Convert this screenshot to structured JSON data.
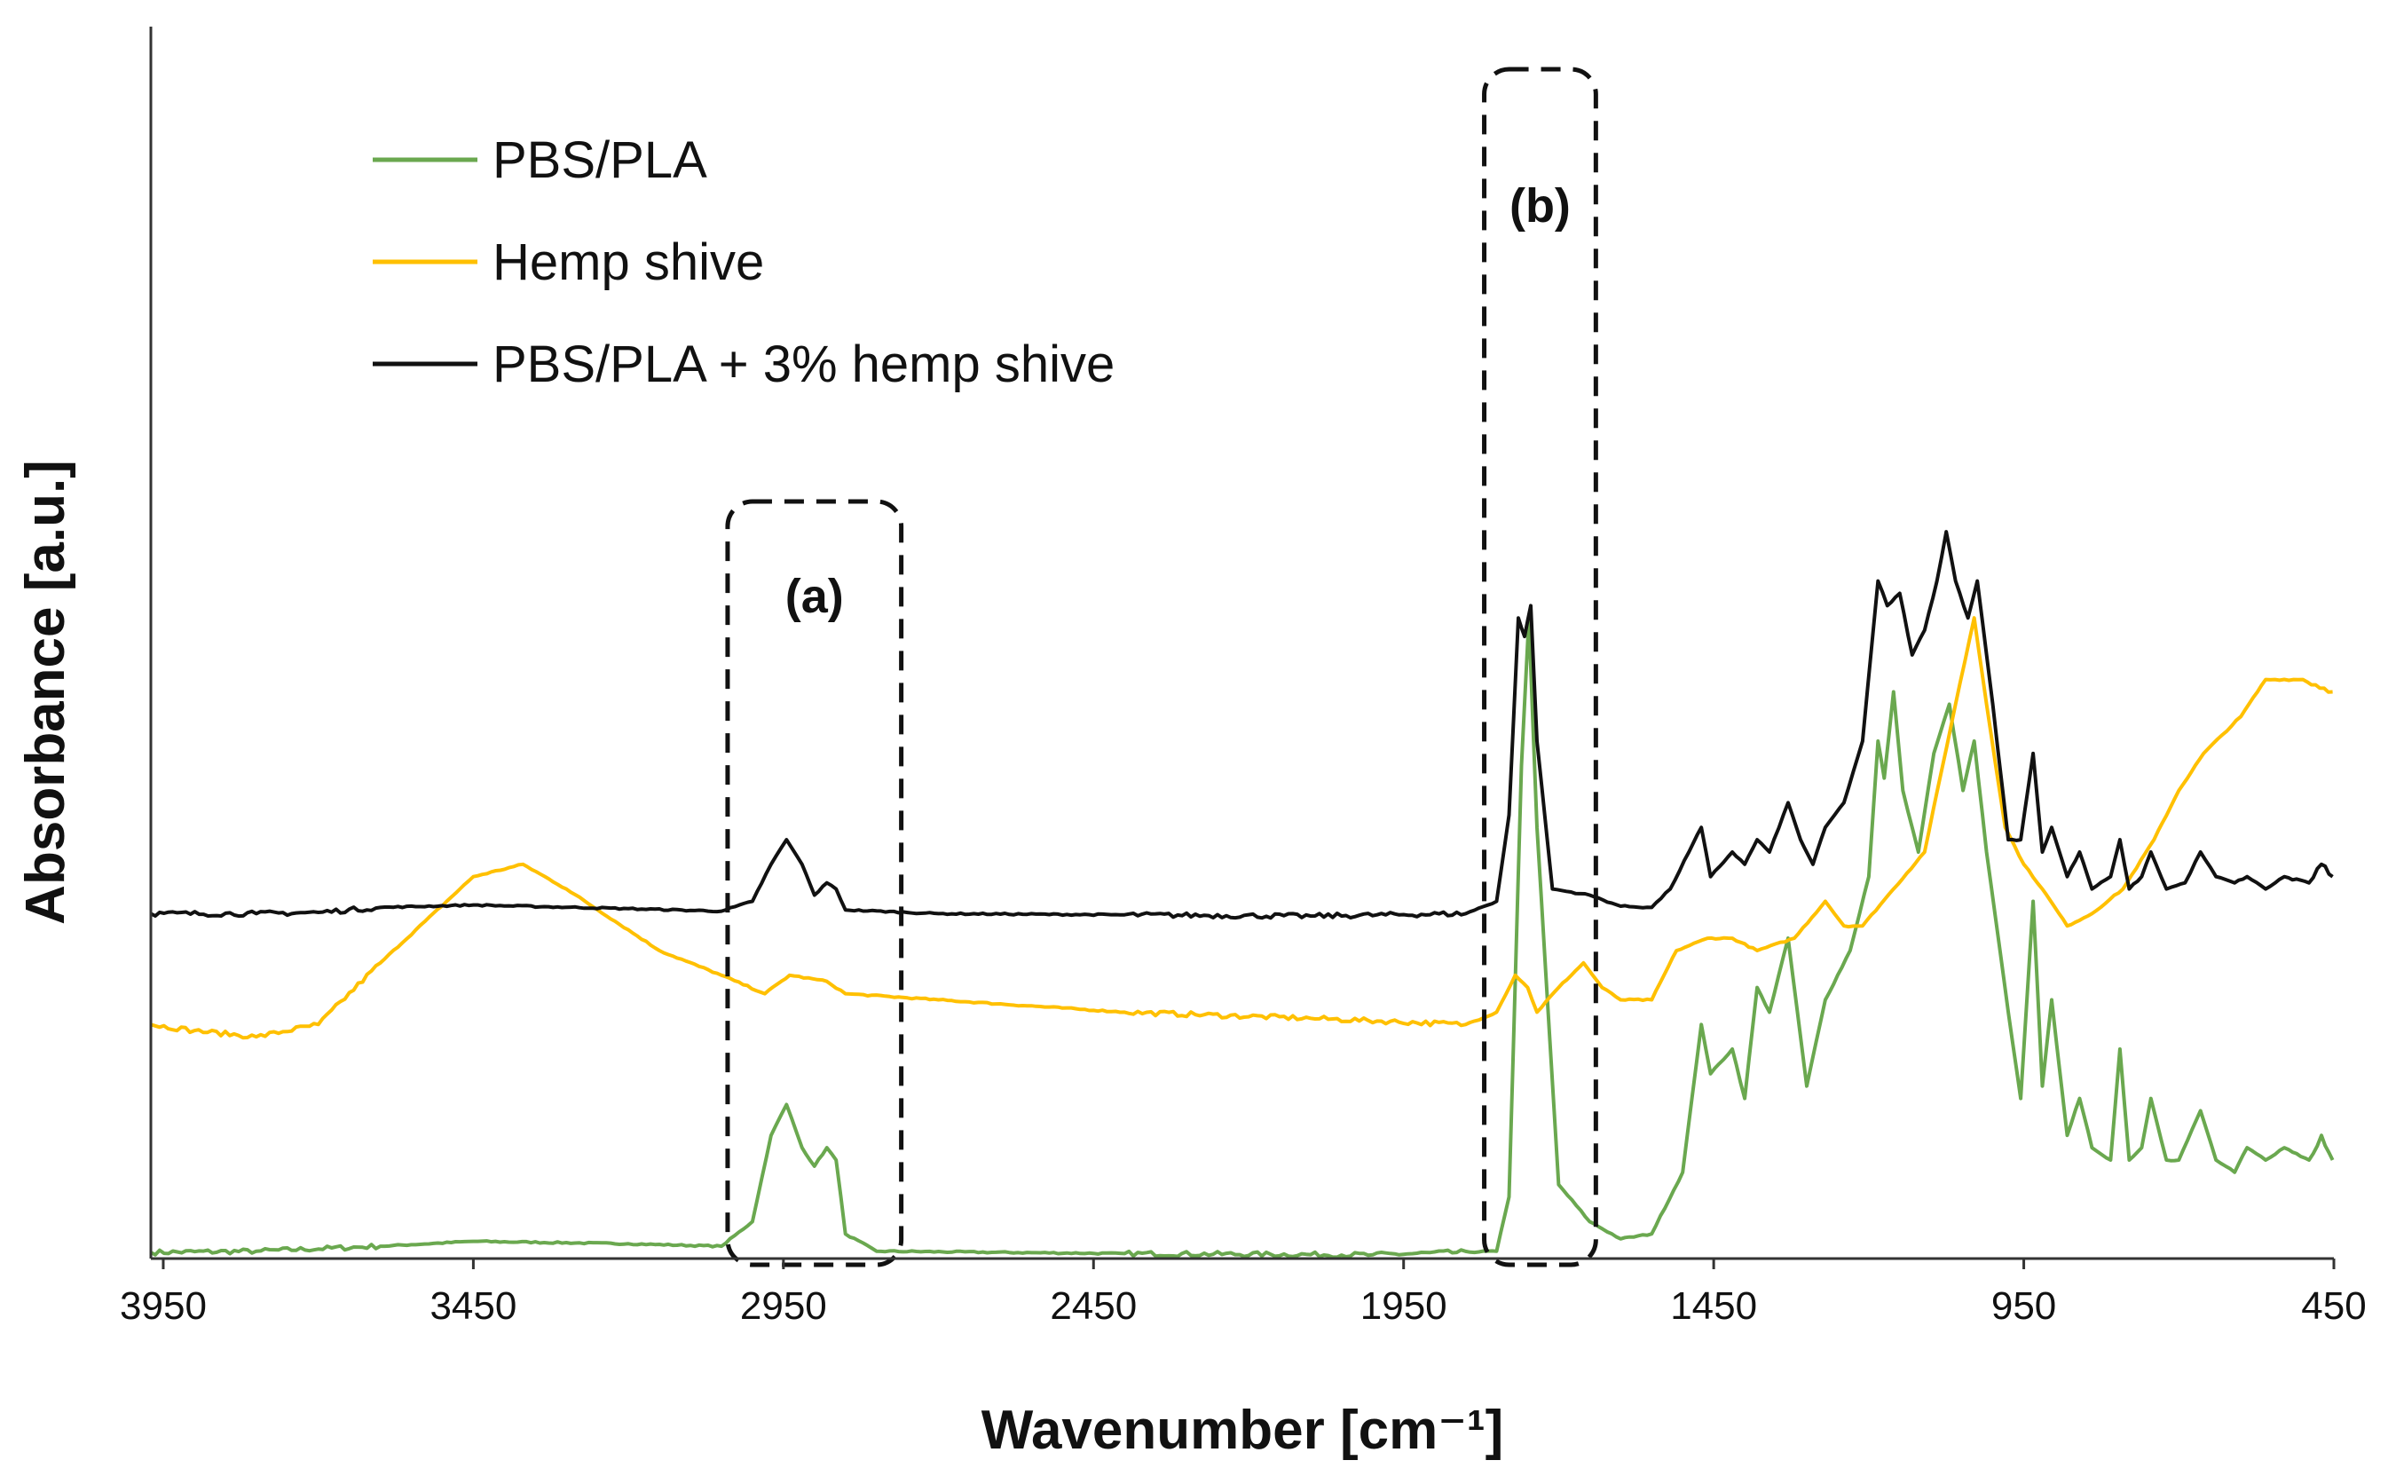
{
  "chart_data": {
    "type": "line",
    "title": "",
    "xlabel": "Wavenumber [cm⁻¹]",
    "ylabel": "Absorbance [a.u.]",
    "xlim": [
      3970,
      450
    ],
    "ylim": [
      0,
      1
    ],
    "x_reversed": true,
    "x_ticks": [
      "3950",
      "3450",
      "2950",
      "2450",
      "1950",
      "1450",
      "950",
      "450"
    ],
    "x_tick_values": [
      3950,
      3450,
      2950,
      2450,
      1950,
      1450,
      950,
      450
    ],
    "y_ticks": [],
    "grid": false,
    "legend_position": "top-left",
    "series": [
      {
        "name": "PBS/PLA",
        "color": "#6aa84f",
        "points": [
          [
            3970,
            0.005
          ],
          [
            3800,
            0.006
          ],
          [
            3600,
            0.01
          ],
          [
            3450,
            0.014
          ],
          [
            3200,
            0.012
          ],
          [
            3050,
            0.01
          ],
          [
            3000,
            0.03
          ],
          [
            2970,
            0.1
          ],
          [
            2945,
            0.125
          ],
          [
            2920,
            0.09
          ],
          [
            2900,
            0.075
          ],
          [
            2880,
            0.09
          ],
          [
            2865,
            0.08
          ],
          [
            2850,
            0.02
          ],
          [
            2800,
            0.006
          ],
          [
            2400,
            0.004
          ],
          [
            2000,
            0.003
          ],
          [
            1800,
            0.006
          ],
          [
            1780,
            0.05
          ],
          [
            1760,
            0.4
          ],
          [
            1748,
            0.52
          ],
          [
            1735,
            0.35
          ],
          [
            1700,
            0.06
          ],
          [
            1650,
            0.03
          ],
          [
            1600,
            0.016
          ],
          [
            1550,
            0.02
          ],
          [
            1500,
            0.07
          ],
          [
            1470,
            0.19
          ],
          [
            1455,
            0.15
          ],
          [
            1420,
            0.17
          ],
          [
            1400,
            0.13
          ],
          [
            1380,
            0.22
          ],
          [
            1360,
            0.2
          ],
          [
            1330,
            0.26
          ],
          [
            1300,
            0.14
          ],
          [
            1270,
            0.21
          ],
          [
            1230,
            0.25
          ],
          [
            1200,
            0.31
          ],
          [
            1185,
            0.42
          ],
          [
            1175,
            0.39
          ],
          [
            1160,
            0.46
          ],
          [
            1145,
            0.38
          ],
          [
            1120,
            0.33
          ],
          [
            1095,
            0.41
          ],
          [
            1070,
            0.45
          ],
          [
            1048,
            0.38
          ],
          [
            1030,
            0.42
          ],
          [
            1010,
            0.33
          ],
          [
            975,
            0.2
          ],
          [
            955,
            0.13
          ],
          [
            935,
            0.29
          ],
          [
            920,
            0.14
          ],
          [
            905,
            0.21
          ],
          [
            880,
            0.1
          ],
          [
            860,
            0.13
          ],
          [
            840,
            0.09
          ],
          [
            810,
            0.08
          ],
          [
            795,
            0.17
          ],
          [
            780,
            0.08
          ],
          [
            760,
            0.09
          ],
          [
            745,
            0.13
          ],
          [
            720,
            0.08
          ],
          [
            700,
            0.08
          ],
          [
            665,
            0.12
          ],
          [
            640,
            0.08
          ],
          [
            610,
            0.07
          ],
          [
            590,
            0.09
          ],
          [
            560,
            0.08
          ],
          [
            530,
            0.09
          ],
          [
            490,
            0.08
          ],
          [
            470,
            0.1
          ],
          [
            452,
            0.08
          ]
        ]
      },
      {
        "name": "Hemp shive",
        "color": "#ffc000",
        "points": [
          [
            3970,
            0.19
          ],
          [
            3900,
            0.185
          ],
          [
            3800,
            0.18
          ],
          [
            3700,
            0.19
          ],
          [
            3600,
            0.24
          ],
          [
            3450,
            0.31
          ],
          [
            3370,
            0.32
          ],
          [
            3300,
            0.3
          ],
          [
            3150,
            0.25
          ],
          [
            3050,
            0.23
          ],
          [
            2980,
            0.215
          ],
          [
            2940,
            0.23
          ],
          [
            2880,
            0.225
          ],
          [
            2850,
            0.215
          ],
          [
            2700,
            0.21
          ],
          [
            2400,
            0.2
          ],
          [
            2100,
            0.195
          ],
          [
            1850,
            0.19
          ],
          [
            1800,
            0.2
          ],
          [
            1770,
            0.23
          ],
          [
            1750,
            0.22
          ],
          [
            1735,
            0.2
          ],
          [
            1700,
            0.22
          ],
          [
            1660,
            0.24
          ],
          [
            1630,
            0.22
          ],
          [
            1600,
            0.21
          ],
          [
            1550,
            0.21
          ],
          [
            1510,
            0.25
          ],
          [
            1460,
            0.26
          ],
          [
            1420,
            0.26
          ],
          [
            1380,
            0.25
          ],
          [
            1320,
            0.26
          ],
          [
            1270,
            0.29
          ],
          [
            1240,
            0.27
          ],
          [
            1210,
            0.27
          ],
          [
            1160,
            0.3
          ],
          [
            1110,
            0.33
          ],
          [
            1060,
            0.45
          ],
          [
            1030,
            0.52
          ],
          [
            1010,
            0.45
          ],
          [
            980,
            0.35
          ],
          [
            950,
            0.32
          ],
          [
            920,
            0.3
          ],
          [
            880,
            0.27
          ],
          [
            840,
            0.28
          ],
          [
            790,
            0.3
          ],
          [
            740,
            0.34
          ],
          [
            700,
            0.38
          ],
          [
            660,
            0.41
          ],
          [
            600,
            0.44
          ],
          [
            560,
            0.47
          ],
          [
            500,
            0.47
          ],
          [
            452,
            0.46
          ]
        ]
      },
      {
        "name": "PBS/PLA + 3% hemp shive",
        "color": "#111111",
        "points": [
          [
            3970,
            0.28
          ],
          [
            3800,
            0.28
          ],
          [
            3700,
            0.281
          ],
          [
            3600,
            0.285
          ],
          [
            3450,
            0.287
          ],
          [
            3200,
            0.284
          ],
          [
            3050,
            0.282
          ],
          [
            3000,
            0.29
          ],
          [
            2970,
            0.32
          ],
          [
            2945,
            0.34
          ],
          [
            2920,
            0.32
          ],
          [
            2900,
            0.295
          ],
          [
            2880,
            0.305
          ],
          [
            2865,
            0.3
          ],
          [
            2850,
            0.283
          ],
          [
            2700,
            0.28
          ],
          [
            2400,
            0.279
          ],
          [
            2100,
            0.278
          ],
          [
            1850,
            0.28
          ],
          [
            1800,
            0.29
          ],
          [
            1780,
            0.36
          ],
          [
            1765,
            0.52
          ],
          [
            1755,
            0.505
          ],
          [
            1745,
            0.53
          ],
          [
            1735,
            0.42
          ],
          [
            1710,
            0.3
          ],
          [
            1650,
            0.295
          ],
          [
            1600,
            0.286
          ],
          [
            1550,
            0.285
          ],
          [
            1520,
            0.3
          ],
          [
            1490,
            0.33
          ],
          [
            1470,
            0.35
          ],
          [
            1455,
            0.31
          ],
          [
            1420,
            0.33
          ],
          [
            1400,
            0.32
          ],
          [
            1380,
            0.34
          ],
          [
            1360,
            0.33
          ],
          [
            1330,
            0.37
          ],
          [
            1310,
            0.34
          ],
          [
            1290,
            0.32
          ],
          [
            1270,
            0.35
          ],
          [
            1240,
            0.37
          ],
          [
            1210,
            0.42
          ],
          [
            1185,
            0.55
          ],
          [
            1170,
            0.53
          ],
          [
            1150,
            0.54
          ],
          [
            1130,
            0.49
          ],
          [
            1110,
            0.51
          ],
          [
            1090,
            0.55
          ],
          [
            1075,
            0.59
          ],
          [
            1060,
            0.55
          ],
          [
            1040,
            0.52
          ],
          [
            1025,
            0.55
          ],
          [
            1000,
            0.45
          ],
          [
            975,
            0.34
          ],
          [
            955,
            0.34
          ],
          [
            935,
            0.41
          ],
          [
            920,
            0.33
          ],
          [
            905,
            0.35
          ],
          [
            880,
            0.31
          ],
          [
            860,
            0.33
          ],
          [
            840,
            0.3
          ],
          [
            810,
            0.31
          ],
          [
            795,
            0.34
          ],
          [
            780,
            0.3
          ],
          [
            760,
            0.31
          ],
          [
            745,
            0.33
          ],
          [
            720,
            0.3
          ],
          [
            690,
            0.305
          ],
          [
            665,
            0.33
          ],
          [
            640,
            0.31
          ],
          [
            610,
            0.305
          ],
          [
            590,
            0.31
          ],
          [
            560,
            0.3
          ],
          [
            530,
            0.31
          ],
          [
            490,
            0.305
          ],
          [
            470,
            0.32
          ],
          [
            452,
            0.31
          ]
        ]
      }
    ],
    "annotations": [
      {
        "label": "(a)",
        "x_range": [
          3040,
          2760
        ]
      },
      {
        "label": "(b)",
        "x_range": [
          1820,
          1640
        ]
      }
    ]
  }
}
